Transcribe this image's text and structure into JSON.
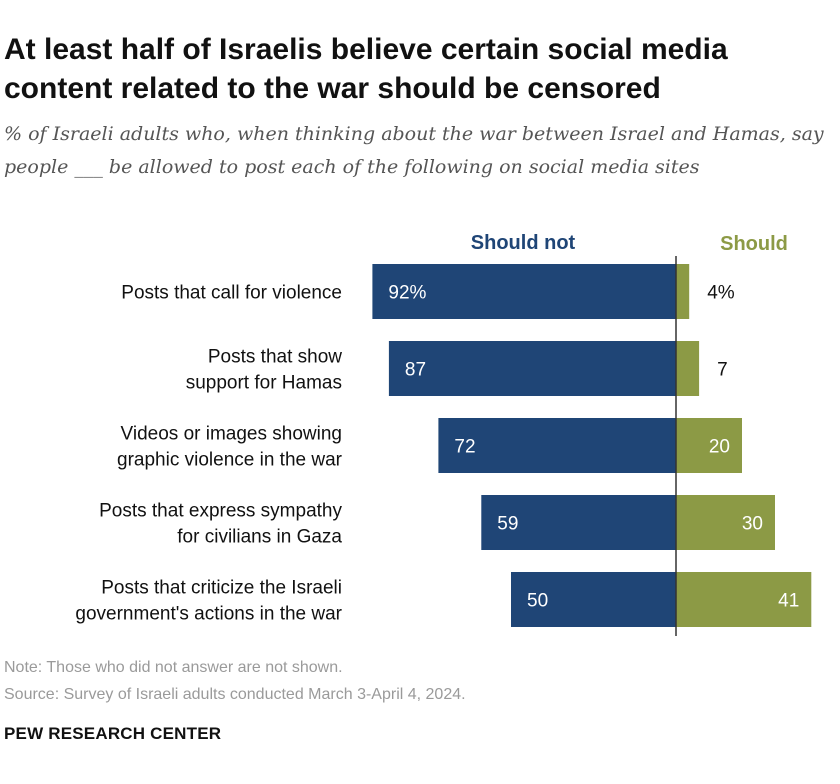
{
  "title": "At least half of Israelis believe certain social media content related to the war should be censored",
  "subtitle": "% of Israeli adults who, when thinking about the war between Israel and Hamas, say people ___ be allowed to post each of the following on social media sites",
  "chart_data": {
    "type": "bar",
    "orientation": "horizontal-diverging",
    "categories": [
      [
        "Posts that call for violence"
      ],
      [
        "Posts that show",
        "support for Hamas"
      ],
      [
        "Videos or images showing",
        "graphic violence in the war"
      ],
      [
        "Posts that express sympathy",
        "for civilians in Gaza"
      ],
      [
        "Posts that criticize the Israeli",
        "government's actions in the war"
      ]
    ],
    "series": [
      {
        "name": "Should not",
        "color": "#1f4576",
        "values": [
          92,
          87,
          72,
          59,
          50
        ],
        "labels": [
          "92%",
          "87",
          "72",
          "59",
          "50"
        ]
      },
      {
        "name": "Should",
        "color": "#8c9a45",
        "values": [
          4,
          7,
          20,
          30,
          41
        ],
        "labels": [
          "4%",
          "7",
          "20",
          "30",
          "41"
        ]
      }
    ]
  },
  "notes": {
    "note": "Note: Those who did not answer are not shown.",
    "source": "Source: Survey of Israeli adults conducted March 3-April 4, 2024."
  },
  "brand": "PEW RESEARCH CENTER"
}
